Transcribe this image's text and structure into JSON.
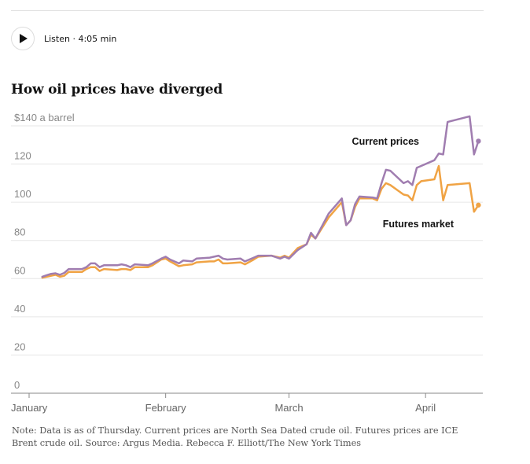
{
  "listen": {
    "label": "Listen · 4:05 min",
    "icon": "play-icon"
  },
  "chart_data": {
    "type": "line",
    "title": "How oil prices have diverged",
    "ylabel": "",
    "y_unit_label": "$140 a barrel",
    "ylim": [
      0,
      140
    ],
    "yticks": [
      0,
      20,
      40,
      60,
      80,
      100,
      120,
      140
    ],
    "ytick_labels": [
      "0",
      "20",
      "40",
      "60",
      "80",
      "100",
      "120",
      "$140 a barrel"
    ],
    "x_months": [
      "January",
      "February",
      "March",
      "April"
    ],
    "x_month_starts": [
      "2022-01-01",
      "2022-02-01",
      "2022-03-01",
      "2022-04-01"
    ],
    "xlim": [
      "2022-01-01",
      "2022-04-14"
    ],
    "grid": true,
    "series": [
      {
        "name": "Current prices",
        "color": "#a07db0",
        "points": [
          [
            "2022-01-04",
            61.0
          ],
          [
            "2022-01-05",
            61.8
          ],
          [
            "2022-01-06",
            62.5
          ],
          [
            "2022-01-07",
            62.8
          ],
          [
            "2022-01-08",
            62.0
          ],
          [
            "2022-01-09",
            63.0
          ],
          [
            "2022-01-10",
            65.0
          ],
          [
            "2022-01-13",
            65.0
          ],
          [
            "2022-01-14",
            66.0
          ],
          [
            "2022-01-15",
            68.0
          ],
          [
            "2022-01-16",
            68.0
          ],
          [
            "2022-01-17",
            66.0
          ],
          [
            "2022-01-18",
            67.0
          ],
          [
            "2022-01-21",
            67.0
          ],
          [
            "2022-01-22",
            67.5
          ],
          [
            "2022-01-23",
            67.0
          ],
          [
            "2022-01-24",
            66.0
          ],
          [
            "2022-01-25",
            67.5
          ],
          [
            "2022-01-28",
            67.0
          ],
          [
            "2022-01-29",
            68.0
          ],
          [
            "2022-01-31",
            70.5
          ],
          [
            "2022-02-01",
            71.5
          ],
          [
            "2022-02-02",
            70.0
          ],
          [
            "2022-02-04",
            68.0
          ],
          [
            "2022-02-05",
            69.5
          ],
          [
            "2022-02-07",
            69.0
          ],
          [
            "2022-02-08",
            70.5
          ],
          [
            "2022-02-11",
            71.0
          ],
          [
            "2022-02-12",
            71.5
          ],
          [
            "2022-02-13",
            72.0
          ],
          [
            "2022-02-14",
            70.5
          ],
          [
            "2022-02-15",
            70.0
          ],
          [
            "2022-02-18",
            70.5
          ],
          [
            "2022-02-19",
            69.0
          ],
          [
            "2022-02-21",
            71.0
          ],
          [
            "2022-02-22",
            72.0
          ],
          [
            "2022-02-25",
            72.0
          ],
          [
            "2022-02-27",
            70.5
          ],
          [
            "2022-02-28",
            71.5
          ],
          [
            "2022-03-01",
            70.5
          ],
          [
            "2022-03-03",
            75.0
          ],
          [
            "2022-03-05",
            78.0
          ],
          [
            "2022-03-06",
            84.0
          ],
          [
            "2022-03-07",
            81.0
          ],
          [
            "2022-03-10",
            94.0
          ],
          [
            "2022-03-13",
            102.0
          ],
          [
            "2022-03-14",
            88.0
          ],
          [
            "2022-03-15",
            90.5
          ],
          [
            "2022-03-16",
            99.0
          ],
          [
            "2022-03-17",
            103.0
          ],
          [
            "2022-03-20",
            102.5
          ],
          [
            "2022-03-21",
            102.0
          ],
          [
            "2022-03-22",
            110.0
          ],
          [
            "2022-03-23",
            117.0
          ],
          [
            "2022-03-24",
            116.5
          ],
          [
            "2022-03-27",
            110.0
          ],
          [
            "2022-03-28",
            111.0
          ],
          [
            "2022-03-29",
            109.0
          ],
          [
            "2022-03-30",
            118.0
          ],
          [
            "2022-03-31",
            119.0
          ],
          [
            "2022-04-03",
            122.0
          ],
          [
            "2022-04-04",
            125.5
          ],
          [
            "2022-04-05",
            125.0
          ],
          [
            "2022-04-06",
            142.0
          ],
          [
            "2022-04-11",
            145.0
          ],
          [
            "2022-04-12",
            125.0
          ],
          [
            "2022-04-13",
            132.0
          ]
        ]
      },
      {
        "name": "Futures market",
        "color": "#f0a344",
        "points": [
          [
            "2022-01-04",
            60.5
          ],
          [
            "2022-01-05",
            61.0
          ],
          [
            "2022-01-06",
            61.5
          ],
          [
            "2022-01-07",
            62.0
          ],
          [
            "2022-01-08",
            61.0
          ],
          [
            "2022-01-09",
            61.5
          ],
          [
            "2022-01-10",
            63.5
          ],
          [
            "2022-01-13",
            63.5
          ],
          [
            "2022-01-14",
            65.0
          ],
          [
            "2022-01-15",
            66.0
          ],
          [
            "2022-01-16",
            66.0
          ],
          [
            "2022-01-17",
            64.0
          ],
          [
            "2022-01-18",
            65.0
          ],
          [
            "2022-01-21",
            64.5
          ],
          [
            "2022-01-22",
            65.0
          ],
          [
            "2022-01-23",
            65.0
          ],
          [
            "2022-01-24",
            64.5
          ],
          [
            "2022-01-25",
            66.0
          ],
          [
            "2022-01-28",
            66.0
          ],
          [
            "2022-01-29",
            67.0
          ],
          [
            "2022-01-31",
            70.0
          ],
          [
            "2022-02-01",
            70.5
          ],
          [
            "2022-02-02",
            69.0
          ],
          [
            "2022-02-04",
            66.5
          ],
          [
            "2022-02-05",
            67.0
          ],
          [
            "2022-02-07",
            67.5
          ],
          [
            "2022-02-08",
            68.5
          ],
          [
            "2022-02-11",
            69.0
          ],
          [
            "2022-02-12",
            69.0
          ],
          [
            "2022-02-13",
            70.0
          ],
          [
            "2022-02-14",
            68.0
          ],
          [
            "2022-02-15",
            68.0
          ],
          [
            "2022-02-18",
            68.5
          ],
          [
            "2022-02-19",
            67.5
          ],
          [
            "2022-02-21",
            70.0
          ],
          [
            "2022-02-22",
            71.5
          ],
          [
            "2022-02-25",
            72.0
          ],
          [
            "2022-02-27",
            71.0
          ],
          [
            "2022-02-28",
            72.0
          ],
          [
            "2022-03-01",
            71.0
          ],
          [
            "2022-03-03",
            76.0
          ],
          [
            "2022-03-05",
            78.0
          ],
          [
            "2022-03-06",
            83.0
          ],
          [
            "2022-03-07",
            81.0
          ],
          [
            "2022-03-10",
            92.0
          ],
          [
            "2022-03-13",
            100.0
          ],
          [
            "2022-03-14",
            88.0
          ],
          [
            "2022-03-15",
            90.5
          ],
          [
            "2022-03-16",
            97.5
          ],
          [
            "2022-03-17",
            102.0
          ],
          [
            "2022-03-20",
            102.0
          ],
          [
            "2022-03-21",
            101.0
          ],
          [
            "2022-03-22",
            107.0
          ],
          [
            "2022-03-23",
            110.0
          ],
          [
            "2022-03-24",
            109.0
          ],
          [
            "2022-03-27",
            104.0
          ],
          [
            "2022-03-28",
            103.5
          ],
          [
            "2022-03-29",
            101.0
          ],
          [
            "2022-03-30",
            109.0
          ],
          [
            "2022-03-31",
            111.0
          ],
          [
            "2022-04-03",
            112.0
          ],
          [
            "2022-04-04",
            119.0
          ],
          [
            "2022-04-05",
            101.0
          ],
          [
            "2022-04-06",
            109.0
          ],
          [
            "2022-04-11",
            110.0
          ],
          [
            "2022-04-12",
            95.0
          ],
          [
            "2022-04-13",
            98.5
          ]
        ]
      }
    ],
    "annotations": [
      "Current prices",
      "Futures market"
    ]
  },
  "note": "Note: Data is as of Thursday. Current prices are North Sea Dated crude oil. Futures prices are ICE Brent crude oil.  Source: Argus Media.  Rebecca F. Elliott/The New York Times"
}
